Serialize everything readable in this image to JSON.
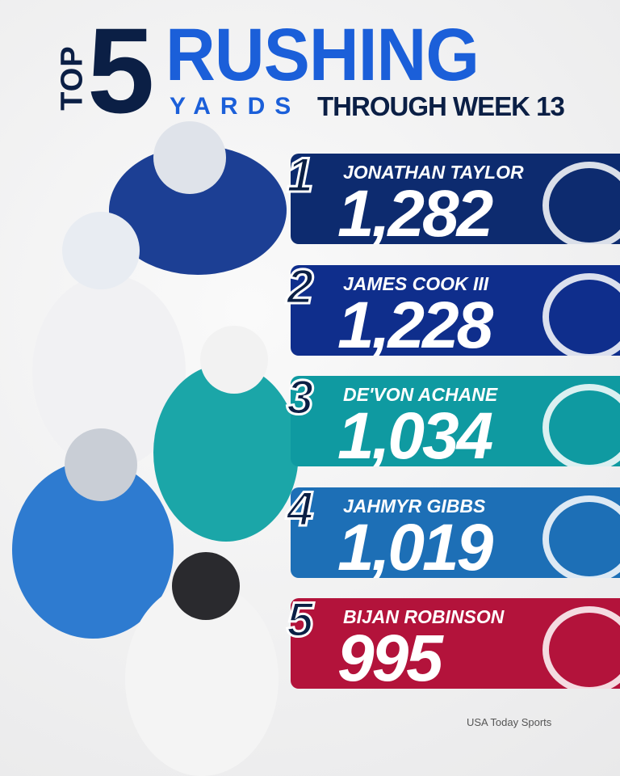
{
  "header": {
    "top": "TOP",
    "number": "5",
    "title": "RUSHING",
    "subtitle_a": "YARDS",
    "subtitle_b": "THROUGH WEEK 13"
  },
  "entries": [
    {
      "rank": "1",
      "name": "JONATHAN TAYLOR",
      "yards": "1,282",
      "color": "#0d2b6f"
    },
    {
      "rank": "2",
      "name": "JAMES COOK III",
      "yards": "1,228",
      "color": "#0f2e8c"
    },
    {
      "rank": "3",
      "name": "DE'VON ACHANE",
      "yards": "1,034",
      "color": "#0f9aa1"
    },
    {
      "rank": "4",
      "name": "JAHMYR GIBBS",
      "yards": "1,019",
      "color": "#1d6fb6"
    },
    {
      "rank": "5",
      "name": "BIJAN ROBINSON",
      "yards": "995",
      "color": "#b3133b"
    }
  ],
  "credit": "USA Today Sports"
}
